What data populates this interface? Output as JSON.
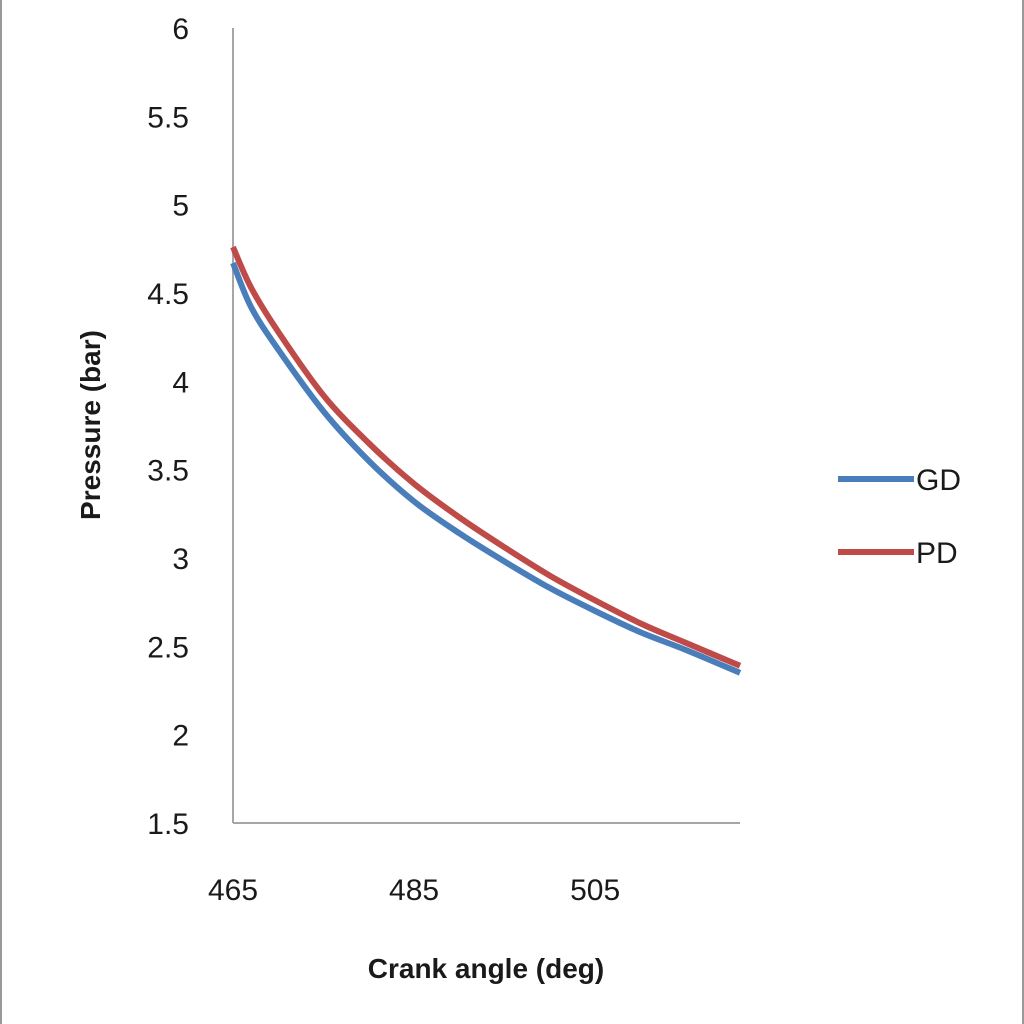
{
  "chart_data": {
    "type": "line",
    "title": "",
    "xlabel": "Crank angle  (deg)",
    "ylabel": "Pressure (bar)",
    "xlim": [
      465,
      521
    ],
    "ylim": [
      1.5,
      6
    ],
    "x_ticks": [
      465,
      485,
      505
    ],
    "x_tick_labels": [
      "465",
      "485",
      "505"
    ],
    "y_ticks": [
      1.5,
      2,
      2.5,
      3,
      3.5,
      4,
      4.5,
      5,
      5.5,
      6
    ],
    "y_tick_labels": [
      "1.5",
      "2",
      "2.5",
      "3",
      "3.5",
      "4",
      "4.5",
      "5",
      "5.5",
      "6"
    ],
    "grid": false,
    "legend_position": "right",
    "series": [
      {
        "name": "GD",
        "color": "#4a7ebb",
        "x": [
          465,
          467,
          470,
          475,
          480,
          485,
          490,
          495,
          500,
          505,
          510,
          515,
          521
        ],
        "y": [
          4.67,
          4.42,
          4.18,
          3.83,
          3.55,
          3.32,
          3.14,
          2.98,
          2.83,
          2.7,
          2.58,
          2.48,
          2.35
        ]
      },
      {
        "name": "PD",
        "color": "#be4b48",
        "x": [
          465,
          467,
          470,
          475,
          480,
          485,
          490,
          495,
          500,
          505,
          510,
          515,
          521
        ],
        "y": [
          4.76,
          4.53,
          4.28,
          3.92,
          3.65,
          3.42,
          3.23,
          3.06,
          2.9,
          2.76,
          2.63,
          2.52,
          2.39
        ]
      }
    ]
  }
}
